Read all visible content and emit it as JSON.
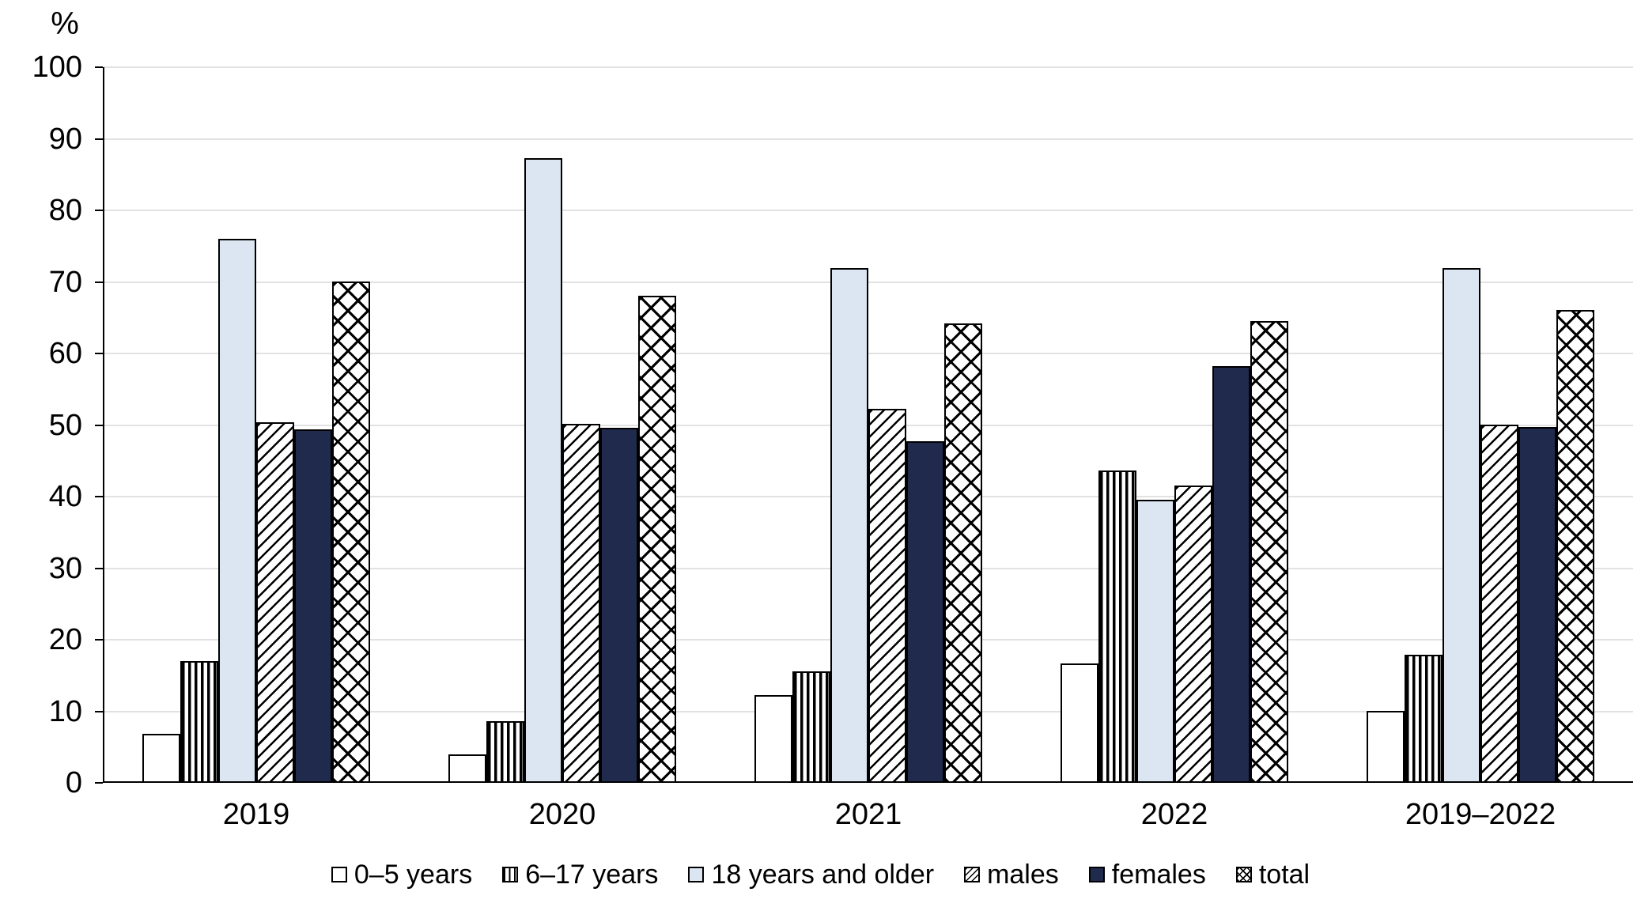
{
  "chart_data": {
    "type": "bar",
    "title": "",
    "y_axis": {
      "unit_label": "%",
      "min": 0,
      "max": 100,
      "step": 10,
      "ticks": [
        0,
        10,
        20,
        30,
        40,
        50,
        60,
        70,
        80,
        90,
        100
      ]
    },
    "categories": [
      "2019",
      "2020",
      "2021",
      "2022",
      "2019–2022"
    ],
    "series": [
      {
        "name": "0–5 years",
        "pattern": "plain-white",
        "values": [
          6.8,
          4.0,
          12.3,
          16.7,
          10.1
        ]
      },
      {
        "name": "6–17 years",
        "pattern": "vertical-stripes",
        "values": [
          17.0,
          8.6,
          15.6,
          43.7,
          17.9
        ]
      },
      {
        "name": "18 years and older",
        "pattern": "solid-lightblue",
        "values": [
          76.0,
          87.3,
          71.9,
          39.6,
          71.9
        ]
      },
      {
        "name": "males",
        "pattern": "diagonal-stripes",
        "values": [
          50.4,
          50.2,
          52.3,
          41.6,
          50.0
        ]
      },
      {
        "name": "females",
        "pattern": "solid-navy",
        "values": [
          49.4,
          49.6,
          47.7,
          58.2,
          49.7
        ]
      },
      {
        "name": "total",
        "pattern": "diagonal-crosshatch",
        "values": [
          70.1,
          68.1,
          64.2,
          64.5,
          66.1
        ]
      }
    ],
    "colors": {
      "light_blue": "#dce6f2",
      "navy": "#1f2a4d",
      "pattern_ink": "#000000",
      "gridline": "#e2e2e2",
      "axis": "#000000"
    },
    "grid": "horizontal",
    "legend_position": "bottom"
  }
}
